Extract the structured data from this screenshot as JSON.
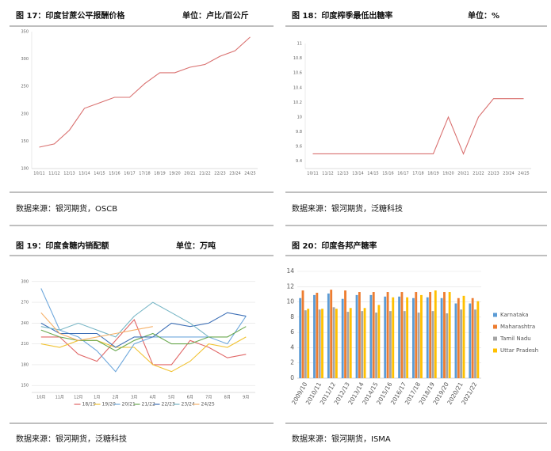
{
  "chart_data": [
    {
      "type": "line",
      "title": "图 17：印度甘蔗公平报酬价格",
      "unit": "单位：卢比/百公斤",
      "source": "数据来源：银河期货，OSCB",
      "categories": [
        "10/11",
        "11/12",
        "12/13",
        "13/14",
        "14/15",
        "15/16",
        "16/17",
        "17/18",
        "18/19",
        "19/20",
        "20/21",
        "21/22",
        "22/23",
        "23/24",
        "24/25"
      ],
      "values": [
        139,
        145,
        170,
        210,
        220,
        230,
        230,
        255,
        275,
        275,
        285,
        290,
        305,
        315,
        340
      ],
      "color": "#d9706f",
      "ylim": [
        100,
        350
      ],
      "yticks": [
        100,
        150,
        200,
        250,
        300,
        350
      ],
      "grid": false
    },
    {
      "type": "line",
      "title": "图 18：印度榨季最低出糖率",
      "unit": "单位：%",
      "source": "数据来源：银河期货，泛糖科技",
      "categories": [
        "10/11",
        "11/12",
        "12/13",
        "13/14",
        "14/15",
        "15/16",
        "16/17",
        "17/18",
        "18/19",
        "19/20",
        "20/21",
        "21/22",
        "22/23",
        "23/24",
        "24/25"
      ],
      "values": [
        9.5,
        9.5,
        9.5,
        9.5,
        9.5,
        9.5,
        9.5,
        9.5,
        9.5,
        10,
        9.5,
        10,
        10.25,
        10.25,
        10.25
      ],
      "color": "#d9706f",
      "ylim": [
        9.3,
        11
      ],
      "yticks": [
        9.4,
        9.6,
        9.8,
        10,
        10.2,
        10.4,
        10.6,
        10.8,
        11
      ],
      "grid": false
    },
    {
      "type": "line",
      "title": "图 19：印度食糖内销配额",
      "unit": "单位：万吨",
      "source": "数据来源：银河期货，泛糖科技",
      "categories": [
        "10月",
        "11月",
        "12月",
        "1月",
        "2月",
        "3月",
        "4月",
        "5月",
        "6月",
        "7月",
        "8月",
        "9月"
      ],
      "series": [
        {
          "name": "18/19",
          "color": "#e06666",
          "values": [
            220,
            220,
            195,
            185,
            215,
            245,
            180,
            180,
            215,
            205,
            190,
            195
          ]
        },
        {
          "name": "19/20",
          "color": "#f1c232",
          "values": [
            210,
            205,
            215,
            215,
            205,
            205,
            180,
            170,
            185,
            210,
            205,
            220
          ]
        },
        {
          "name": "20/21",
          "color": "#6fa8dc",
          "values": [
            290,
            230,
            220,
            200,
            170,
            210,
            220,
            220,
            220,
            220,
            210,
            250
          ]
        },
        {
          "name": "21/22",
          "color": "#6aa84f",
          "values": [
            230,
            220,
            215,
            215,
            200,
            215,
            225,
            210,
            210,
            220,
            220,
            235
          ]
        },
        {
          "name": "22/23",
          "color": "#3d6fb6",
          "values": [
            240,
            225,
            225,
            225,
            205,
            220,
            220,
            240,
            235,
            240,
            255,
            250
          ]
        },
        {
          "name": "23/24",
          "color": "#76b5c5",
          "values": [
            235,
            230,
            240,
            230,
            220,
            250,
            270,
            255,
            240,
            220,
            null,
            null
          ]
        },
        {
          "name": "24/25",
          "color": "#f6b26b",
          "values": [
            255,
            225,
            215,
            220,
            225,
            230,
            235,
            null,
            null,
            null,
            null,
            null
          ]
        }
      ],
      "ylim": [
        140,
        310
      ],
      "yticks": [
        150,
        180,
        210,
        240,
        270,
        300
      ],
      "grid": true
    },
    {
      "type": "bar",
      "title": "图 20：印度各邦产糖率",
      "source": "数据来源：银河期货，ISMA",
      "categories": [
        "2009/10",
        "2010/11",
        "2011/12",
        "2012/13",
        "2013/14",
        "2014/15",
        "2015/16",
        "2016/17",
        "2017/18",
        "2018/19",
        "2019/20",
        "2020/21",
        "2021/22"
      ],
      "series": [
        {
          "name": "Karnataka",
          "color": "#5b9bd5",
          "values": [
            10.5,
            10.9,
            11.1,
            10.4,
            10.9,
            10.9,
            10.7,
            10.7,
            10.5,
            10.6,
            10.5,
            9.8,
            9.8
          ]
        },
        {
          "name": "Maharashtra",
          "color": "#ed7d31",
          "values": [
            11.5,
            11.2,
            11.6,
            11.5,
            11.3,
            11.3,
            11.3,
            11.3,
            11.3,
            11.3,
            11.3,
            10.5,
            10.5
          ]
        },
        {
          "name": "Tamil Nadu",
          "color": "#a5a5a5",
          "values": [
            8.9,
            9.0,
            9.3,
            8.7,
            8.8,
            8.6,
            8.8,
            8.8,
            8.6,
            8.8,
            8.5,
            9.0,
            9.0
          ]
        },
        {
          "name": "Uttar Pradesh",
          "color": "#ffc000",
          "values": [
            9.1,
            9.1,
            9.1,
            9.2,
            9.2,
            9.6,
            10.6,
            10.6,
            10.9,
            11.5,
            11.3,
            10.8,
            10.1
          ]
        }
      ],
      "ylim": [
        0,
        14
      ],
      "yticks": [
        0,
        2,
        4,
        6,
        8,
        10,
        12,
        14
      ],
      "grid": true
    }
  ]
}
